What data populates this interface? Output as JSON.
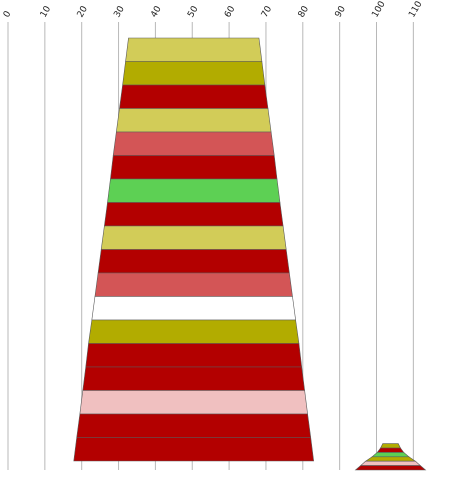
{
  "chart_data": {
    "type": "funnel",
    "xlim": [
      0,
      115
    ],
    "x_ticks": [
      0,
      10,
      20,
      30,
      40,
      50,
      60,
      70,
      80,
      90,
      100,
      110
    ],
    "grid": true,
    "funnels": [
      {
        "center": 50.4,
        "bands": [
          {
            "top_width": 35.4,
            "bottom_width": 37.0,
            "color": "#d2cc58"
          },
          {
            "top_width": 37.0,
            "bottom_width": 38.6,
            "color": "#b2ac00"
          },
          {
            "top_width": 38.6,
            "bottom_width": 40.3,
            "color": "#b30000"
          },
          {
            "top_width": 40.3,
            "bottom_width": 42.0,
            "color": "#d2cc58"
          },
          {
            "top_width": 42.0,
            "bottom_width": 43.7,
            "color": "#d35556"
          },
          {
            "top_width": 43.7,
            "bottom_width": 45.2,
            "color": "#b30000"
          },
          {
            "top_width": 45.2,
            "bottom_width": 46.8,
            "color": "#5dd054"
          },
          {
            "top_width": 46.8,
            "bottom_width": 48.5,
            "color": "#b30000"
          },
          {
            "top_width": 48.5,
            "bottom_width": 50.2,
            "color": "#d2cc58"
          },
          {
            "top_width": 50.2,
            "bottom_width": 51.9,
            "color": "#b30000"
          },
          {
            "top_width": 51.9,
            "bottom_width": 53.6,
            "color": "#d35556"
          },
          {
            "top_width": 53.6,
            "bottom_width": 55.3,
            "color": "#ffffff"
          },
          {
            "top_width": 55.3,
            "bottom_width": 57.1,
            "color": "#b2ac00"
          },
          {
            "top_width": 57.1,
            "bottom_width": 58.6,
            "color": "#b30000"
          },
          {
            "top_width": 58.6,
            "bottom_width": 60.2,
            "color": "#b30000"
          },
          {
            "top_width": 60.2,
            "bottom_width": 61.8,
            "color": "#f0c0c0"
          },
          {
            "top_width": 61.8,
            "bottom_width": 63.5,
            "color": "#b30000"
          },
          {
            "top_width": 63.5,
            "bottom_width": 65.1,
            "color": "#b30000"
          }
        ]
      },
      {
        "center": 103.8,
        "bands": [
          {
            "top_width": 4.2,
            "bottom_width": 5.4,
            "color": "#b2ac00"
          },
          {
            "top_width": 5.4,
            "bottom_width": 7.2,
            "color": "#b30000"
          },
          {
            "top_width": 7.2,
            "bottom_width": 10.0,
            "color": "#5dd054"
          },
          {
            "top_width": 10.0,
            "bottom_width": 13.5,
            "color": "#b2ac00"
          },
          {
            "top_width": 13.5,
            "bottom_width": 16.2,
            "color": "#f0c0c0"
          },
          {
            "top_width": 16.2,
            "bottom_width": 19.0,
            "color": "#b30000"
          }
        ]
      }
    ]
  }
}
